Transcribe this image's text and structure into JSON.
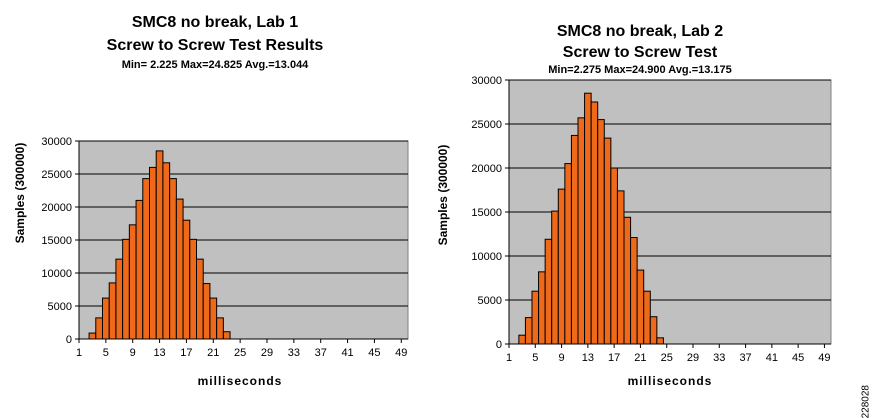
{
  "chart_data": [
    {
      "type": "bar",
      "title_line1": "SMC8 no break, Lab 1",
      "title_line2": "Screw to Screw Test Results",
      "stats": "Min= 2.225  Max=24.825  Avg.=13.044",
      "ylabel": "Samples (300000)",
      "xlabel": "milliseconds",
      "xlim": [
        1,
        50
      ],
      "ylim": [
        0,
        30000
      ],
      "yticks": [
        0,
        5000,
        10000,
        15000,
        20000,
        25000,
        30000
      ],
      "xticks": [
        1,
        5,
        9,
        13,
        17,
        21,
        25,
        29,
        33,
        37,
        41,
        45,
        49
      ],
      "grid": true,
      "bar_color": "#ee6a1a",
      "plot_bg": "#c0c0c0",
      "x": [
        3,
        4,
        5,
        6,
        7,
        8,
        9,
        10,
        11,
        12,
        13,
        14,
        15,
        16,
        17,
        18,
        19,
        20,
        21,
        22,
        23,
        24
      ],
      "values": [
        900,
        3200,
        6200,
        8500,
        12100,
        15100,
        17300,
        21000,
        24300,
        26000,
        28500,
        26700,
        24300,
        21200,
        18000,
        15100,
        12100,
        8400,
        6200,
        3200,
        1100,
        0
      ]
    },
    {
      "type": "bar",
      "title_line1": "SMC8 no break, Lab 2",
      "title_line2": "Screw to Screw Test",
      "stats": "Min=2.275  Max=24.900  Avg.=13.175",
      "ylabel": "Samples (300000)",
      "xlabel": "milliseconds",
      "xlim": [
        1,
        50
      ],
      "ylim": [
        0,
        30000
      ],
      "yticks": [
        0,
        5000,
        10000,
        15000,
        20000,
        25000,
        30000
      ],
      "xticks": [
        1,
        5,
        9,
        13,
        17,
        21,
        25,
        29,
        33,
        37,
        41,
        45,
        49
      ],
      "grid": true,
      "bar_color": "#ee6a1a",
      "plot_bg": "#c0c0c0",
      "x": [
        3,
        4,
        5,
        6,
        7,
        8,
        9,
        10,
        11,
        12,
        13,
        14,
        15,
        16,
        17,
        18,
        19,
        20,
        21,
        22,
        23,
        24
      ],
      "values": [
        1000,
        3000,
        6000,
        8200,
        11900,
        15100,
        17600,
        20500,
        23700,
        25700,
        28500,
        27500,
        25500,
        23400,
        20000,
        17400,
        14400,
        12100,
        8400,
        6000,
        3100,
        700
      ]
    }
  ],
  "figure_id": "228028"
}
